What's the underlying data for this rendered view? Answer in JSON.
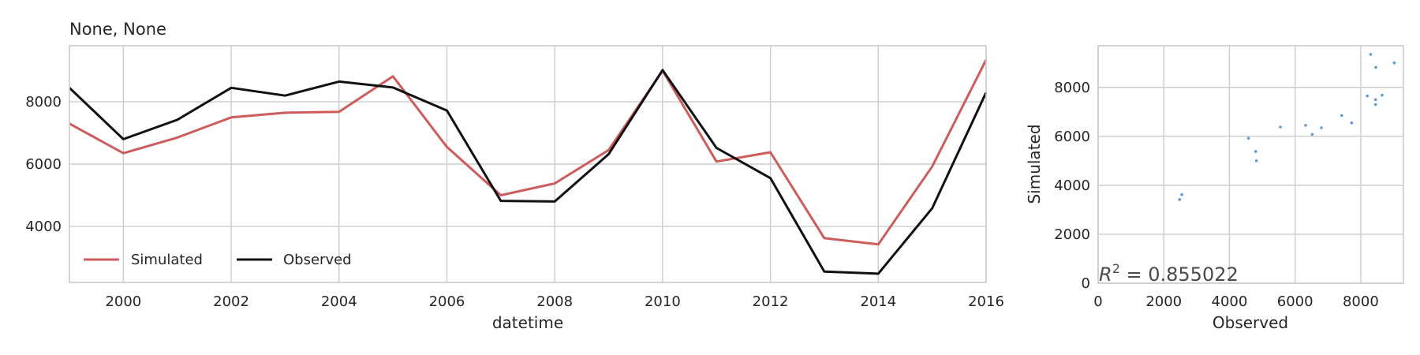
{
  "chart_data": [
    {
      "type": "line",
      "title": "None, None",
      "xlabel": "datetime",
      "ylabel": "",
      "x": [
        1999,
        2000,
        2001,
        2002,
        2003,
        2004,
        2005,
        2006,
        2007,
        2008,
        2009,
        2010,
        2011,
        2012,
        2013,
        2014,
        2015,
        2016
      ],
      "xlim": [
        1999,
        2016
      ],
      "ylim": [
        2200,
        9800
      ],
      "xticks": [
        2000,
        2002,
        2004,
        2006,
        2008,
        2010,
        2012,
        2014,
        2016
      ],
      "yticks": [
        4000,
        6000,
        8000
      ],
      "series": [
        {
          "name": "Simulated",
          "color": "#cd5c5c",
          "values": [
            7300,
            6350,
            6850,
            7500,
            7650,
            7680,
            8820,
            6550,
            5000,
            5380,
            6450,
            9000,
            6080,
            6380,
            3620,
            3420,
            5920,
            9350
          ]
        },
        {
          "name": "Observed",
          "color": "#111111",
          "values": [
            8450,
            6800,
            7420,
            8450,
            8200,
            8650,
            8460,
            7720,
            4820,
            4800,
            6320,
            9020,
            6520,
            5550,
            2550,
            2480,
            4580,
            8300
          ]
        }
      ],
      "legend": "lower-left",
      "grid": true
    },
    {
      "type": "scatter",
      "xlabel": "Observed",
      "ylabel": "Simulated",
      "xlim": [
        0,
        9300
      ],
      "ylim": [
        0,
        9700
      ],
      "xticks": [
        0,
        2000,
        4000,
        6000,
        8000
      ],
      "yticks": [
        0,
        2000,
        4000,
        6000,
        8000
      ],
      "color": "#5b9bd5",
      "points": [
        [
          2480,
          3420
        ],
        [
          2550,
          3620
        ],
        [
          4580,
          5920
        ],
        [
          4800,
          5380
        ],
        [
          4820,
          5000
        ],
        [
          5550,
          6380
        ],
        [
          6320,
          6450
        ],
        [
          6520,
          6080
        ],
        [
          6800,
          6350
        ],
        [
          7420,
          6850
        ],
        [
          7720,
          6550
        ],
        [
          8200,
          7650
        ],
        [
          8300,
          9350
        ],
        [
          8450,
          7300
        ],
        [
          8450,
          7500
        ],
        [
          8460,
          8820
        ],
        [
          8650,
          7680
        ],
        [
          9020,
          9000
        ]
      ],
      "annotation": "R^2 = 0.855022",
      "grid": true
    }
  ]
}
